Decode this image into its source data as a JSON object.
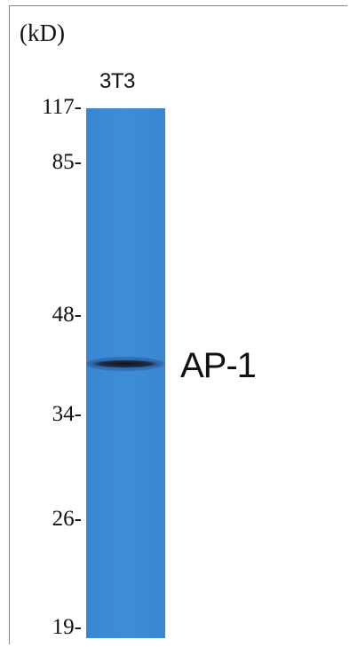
{
  "unit_label": "(kD)",
  "lane_label": "3T3",
  "band_label": "AP-1",
  "markers": [
    "117-",
    "85-",
    "48-",
    "34-",
    "26-",
    "19-"
  ],
  "colors": {
    "membrane": "#3b8ad6",
    "band": "#141b2c",
    "frame": "#8a8a8a"
  }
}
